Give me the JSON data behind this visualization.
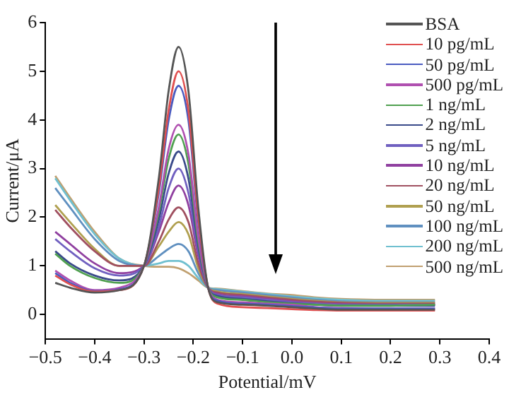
{
  "chart_data": {
    "type": "line",
    "xlabel": "Potential/mV",
    "ylabel": "Current/μA",
    "x": [
      -0.48,
      -0.45,
      -0.4,
      -0.35,
      -0.3,
      -0.27,
      -0.25,
      -0.23,
      -0.21,
      -0.19,
      -0.17,
      -0.15,
      -0.1,
      -0.05,
      0,
      0.05,
      0.1,
      0.2,
      0.29
    ],
    "xlim": [
      -0.5,
      0.4
    ],
    "xticks": [
      -0.5,
      -0.4,
      -0.3,
      -0.2,
      -0.1,
      {
        "value": 0,
        "label": "0.0"
      },
      0.1,
      0.2,
      0.3,
      0.4
    ],
    "ylim": [
      -0.5,
      6
    ],
    "yticks": [
      0,
      1,
      2,
      3,
      4,
      5,
      6
    ],
    "grid": false,
    "legend": "top right",
    "marker": "none",
    "line_style": "solid",
    "series": [
      {
        "name": "BSA",
        "color": "#555555",
        "values": [
          0.65,
          0.55,
          0.45,
          0.5,
          1.0,
          2.8,
          4.6,
          5.5,
          4.6,
          2.2,
          0.55,
          0.25,
          0.2,
          0.18,
          0.15,
          0.12,
          0.1,
          0.1,
          0.1
        ]
      },
      {
        "name": "10 pg/mL",
        "color": "#e05050",
        "values": [
          0.8,
          0.62,
          0.47,
          0.5,
          1.0,
          2.6,
          4.2,
          5.0,
          4.2,
          2.0,
          0.55,
          0.22,
          0.15,
          0.13,
          0.11,
          0.09,
          0.08,
          0.08,
          0.08
        ]
      },
      {
        "name": "50 pg/mL",
        "color": "#4a5bc0",
        "values": [
          0.85,
          0.65,
          0.48,
          0.52,
          1.0,
          2.5,
          4.0,
          4.7,
          4.0,
          1.9,
          0.55,
          0.28,
          0.22,
          0.2,
          0.17,
          0.14,
          0.12,
          0.12,
          0.12
        ]
      },
      {
        "name": "500 pg/mL",
        "color": "#b050b0",
        "values": [
          0.9,
          0.7,
          0.5,
          0.55,
          1.0,
          2.2,
          3.4,
          3.9,
          3.3,
          1.6,
          0.55,
          0.3,
          0.25,
          0.22,
          0.2,
          0.15,
          0.13,
          0.12,
          0.12
        ]
      },
      {
        "name": "1 ng/mL",
        "color": "#50a050",
        "values": [
          1.25,
          1.0,
          0.75,
          0.65,
          1.0,
          2.1,
          3.2,
          3.7,
          3.1,
          1.5,
          0.55,
          0.35,
          0.3,
          0.25,
          0.22,
          0.2,
          0.18,
          0.18,
          0.2
        ]
      },
      {
        "name": "2 ng/mL",
        "color": "#3a4a8a",
        "values": [
          1.3,
          1.05,
          0.8,
          0.7,
          1.0,
          1.95,
          2.9,
          3.35,
          2.8,
          1.4,
          0.55,
          0.38,
          0.32,
          0.27,
          0.23,
          0.2,
          0.18,
          0.18,
          0.18
        ]
      },
      {
        "name": "5 ng/mL",
        "color": "#7060c0",
        "values": [
          1.55,
          1.3,
          0.95,
          0.8,
          1.0,
          1.8,
          2.6,
          3.0,
          2.5,
          1.3,
          0.55,
          0.4,
          0.35,
          0.3,
          0.25,
          0.22,
          0.2,
          0.2,
          0.2
        ]
      },
      {
        "name": "10 ng/mL",
        "color": "#9040a0",
        "values": [
          1.7,
          1.45,
          1.05,
          0.85,
          1.0,
          1.7,
          2.3,
          2.65,
          2.25,
          1.2,
          0.55,
          0.42,
          0.37,
          0.32,
          0.27,
          0.23,
          0.21,
          0.2,
          0.2
        ]
      },
      {
        "name": "20 ng/mL",
        "color": "#a05060",
        "values": [
          2.15,
          1.8,
          1.3,
          1.0,
          1.0,
          1.5,
          1.95,
          2.2,
          1.9,
          1.05,
          0.55,
          0.45,
          0.4,
          0.35,
          0.3,
          0.26,
          0.24,
          0.22,
          0.22
        ]
      },
      {
        "name": "50 ng/mL",
        "color": "#b0a050",
        "values": [
          2.25,
          1.9,
          1.35,
          1.0,
          1.0,
          1.4,
          1.7,
          1.9,
          1.65,
          0.95,
          0.55,
          0.47,
          0.42,
          0.37,
          0.32,
          0.28,
          0.25,
          0.24,
          0.24
        ]
      },
      {
        "name": "100 ng/mL",
        "color": "#6090c0",
        "values": [
          2.6,
          2.2,
          1.55,
          1.1,
          1.0,
          1.2,
          1.35,
          1.45,
          1.3,
          0.85,
          0.55,
          0.5,
          0.45,
          0.4,
          0.35,
          0.3,
          0.27,
          0.25,
          0.25
        ]
      },
      {
        "name": "200 ng/mL",
        "color": "#70c0d0",
        "values": [
          2.8,
          2.35,
          1.65,
          1.15,
          1.0,
          1.05,
          1.1,
          1.1,
          1.0,
          0.75,
          0.55,
          0.52,
          0.47,
          0.42,
          0.37,
          0.33,
          0.3,
          0.28,
          0.28
        ]
      },
      {
        "name": "500 ng/mL",
        "color": "#c0a070",
        "values": [
          2.85,
          2.4,
          1.7,
          1.15,
          1.0,
          0.98,
          0.98,
          0.95,
          0.85,
          0.7,
          0.55,
          0.53,
          0.48,
          0.43,
          0.4,
          0.35,
          0.32,
          0.3,
          0.3
        ]
      }
    ]
  }
}
